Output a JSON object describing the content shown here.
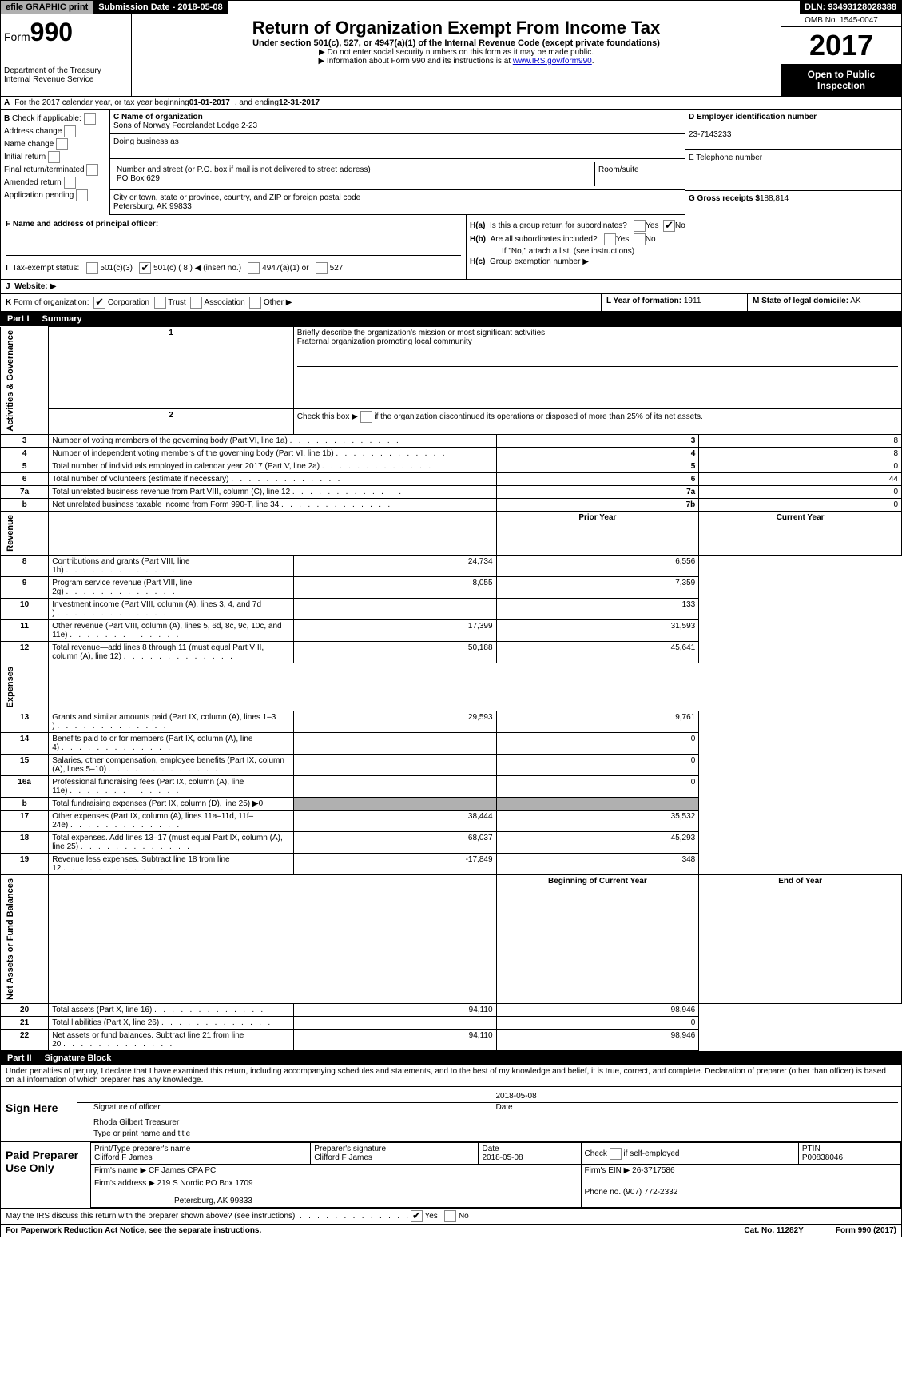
{
  "header": {
    "efile": "efile GRAPHIC print",
    "submission_label": "Submission Date - 2018-05-08",
    "dln_label": "DLN: 93493128028388",
    "form_no": "990",
    "form_prefix": "Form",
    "dept1": "Department of the Treasury",
    "dept2": "Internal Revenue Service",
    "title": "Return of Organization Exempt From Income Tax",
    "subtitle": "Under section 501(c), 527, or 4947(a)(1) of the Internal Revenue Code (except private foundations)",
    "instr1": "▶ Do not enter social security numbers on this form as it may be made public.",
    "instr2_pre": "▶ Information about Form 990 and its instructions is at ",
    "instr2_link": "www.IRS.gov/form990",
    "omb": "OMB No. 1545-0047",
    "year": "2017",
    "public": "Open to Public Inspection"
  },
  "secA": {
    "label": "A",
    "text_pre": "For the 2017 calendar year, or tax year beginning ",
    "begin": "01-01-2017",
    "mid": ", and ending ",
    "end": "12-31-2017"
  },
  "secB": {
    "label": "B",
    "check_if": "Check if applicable:",
    "items": [
      "Address change",
      "Name change",
      "Initial return",
      "Final return/terminated",
      "Amended return",
      "Application pending"
    ]
  },
  "secC": {
    "name_label": "C Name of organization",
    "name": "Sons of Norway Fedrelandet Lodge 2-23",
    "dba_label": "Doing business as",
    "addr_label": "Number and street (or P.O. box if mail is not delivered to street address)",
    "room_label": "Room/suite",
    "addr": "PO Box 629",
    "city_label": "City or town, state or province, country, and ZIP or foreign postal code",
    "city": "Petersburg, AK  99833"
  },
  "secD": {
    "label": "D Employer identification number",
    "ein": "23-7143233"
  },
  "secE": {
    "label": "E Telephone number"
  },
  "secG": {
    "label": "G Gross receipts $",
    "val": "188,814"
  },
  "secF": {
    "label": "F Name and address of principal officer:"
  },
  "secH": {
    "a_label": "H(a)",
    "a_text": "Is this a group return for subordinates?",
    "yes": "Yes",
    "no": "No",
    "b_label": "H(b)",
    "b_text": "Are all subordinates included?",
    "b_note": "If \"No,\" attach a list. (see instructions)",
    "c_label": "H(c)",
    "c_text": "Group exemption number ▶"
  },
  "secI": {
    "label": "I",
    "text": "Tax-exempt status:",
    "opt1": "501(c)(3)",
    "opt2": "501(c) ( 8 ) ◀ (insert no.)",
    "opt3": "4947(a)(1) or",
    "opt4": "527"
  },
  "secJ": {
    "label": "J",
    "text": "Website: ▶"
  },
  "secK": {
    "label": "K",
    "text": "Form of organization:",
    "o1": "Corporation",
    "o2": "Trust",
    "o3": "Association",
    "o4": "Other ▶"
  },
  "secL": {
    "label": "L Year of formation:",
    "val": "1911"
  },
  "secM": {
    "label": "M State of legal domicile:",
    "val": "AK"
  },
  "part1": {
    "label": "Part I",
    "title": "Summary"
  },
  "summary": {
    "q1": "Briefly describe the organization's mission or most significant activities:",
    "q1_ans": "Fraternal organization promoting local community",
    "q2": "Check this box ▶          if the organization discontinued its operations or disposed of more than 25% of its net assets.",
    "rows_single": [
      {
        "n": "3",
        "t": "Number of voting members of the governing body (Part VI, line 1a)",
        "c": "3",
        "v": "8"
      },
      {
        "n": "4",
        "t": "Number of independent voting members of the governing body (Part VI, line 1b)",
        "c": "4",
        "v": "8"
      },
      {
        "n": "5",
        "t": "Total number of individuals employed in calendar year 2017 (Part V, line 2a)",
        "c": "5",
        "v": "0"
      },
      {
        "n": "6",
        "t": "Total number of volunteers (estimate if necessary)",
        "c": "6",
        "v": "44"
      },
      {
        "n": "7a",
        "t": "Total unrelated business revenue from Part VIII, column (C), line 12",
        "c": "7a",
        "v": "0"
      },
      {
        "n": "b",
        "t": "Net unrelated business taxable income from Form 990-T, line 34",
        "c": "7b",
        "v": "0"
      }
    ],
    "col_prior": "Prior Year",
    "col_current": "Current Year",
    "revenue": [
      {
        "n": "8",
        "t": "Contributions and grants (Part VIII, line 1h)",
        "p": "24,734",
        "c": "6,556"
      },
      {
        "n": "9",
        "t": "Program service revenue (Part VIII, line 2g)",
        "p": "8,055",
        "c": "7,359"
      },
      {
        "n": "10",
        "t": "Investment income (Part VIII, column (A), lines 3, 4, and 7d )",
        "p": "",
        "c": "133"
      },
      {
        "n": "11",
        "t": "Other revenue (Part VIII, column (A), lines 5, 6d, 8c, 9c, 10c, and 11e)",
        "p": "17,399",
        "c": "31,593"
      },
      {
        "n": "12",
        "t": "Total revenue—add lines 8 through 11 (must equal Part VIII, column (A), line 12)",
        "p": "50,188",
        "c": "45,641"
      }
    ],
    "expenses": [
      {
        "n": "13",
        "t": "Grants and similar amounts paid (Part IX, column (A), lines 1–3 )",
        "p": "29,593",
        "c": "9,761"
      },
      {
        "n": "14",
        "t": "Benefits paid to or for members (Part IX, column (A), line 4)",
        "p": "",
        "c": "0"
      },
      {
        "n": "15",
        "t": "Salaries, other compensation, employee benefits (Part IX, column (A), lines 5–10)",
        "p": "",
        "c": "0"
      },
      {
        "n": "16a",
        "t": "Professional fundraising fees (Part IX, column (A), line 11e)",
        "p": "",
        "c": "0"
      },
      {
        "n": "b",
        "t": "Total fundraising expenses (Part IX, column (D), line 25) ▶0",
        "p": "shade",
        "c": "shade"
      },
      {
        "n": "17",
        "t": "Other expenses (Part IX, column (A), lines 11a–11d, 11f–24e)",
        "p": "38,444",
        "c": "35,532"
      },
      {
        "n": "18",
        "t": "Total expenses. Add lines 13–17 (must equal Part IX, column (A), line 25)",
        "p": "68,037",
        "c": "45,293"
      },
      {
        "n": "19",
        "t": "Revenue less expenses. Subtract line 18 from line 12",
        "p": "-17,849",
        "c": "348"
      }
    ],
    "col_begin": "Beginning of Current Year",
    "col_end": "End of Year",
    "netassets": [
      {
        "n": "20",
        "t": "Total assets (Part X, line 16)",
        "p": "94,110",
        "c": "98,946"
      },
      {
        "n": "21",
        "t": "Total liabilities (Part X, line 26)",
        "p": "",
        "c": "0"
      },
      {
        "n": "22",
        "t": "Net assets or fund balances. Subtract line 21 from line 20",
        "p": "94,110",
        "c": "98,946"
      }
    ],
    "vlabels": [
      "Activities & Governance",
      "Revenue",
      "Expenses",
      "Net Assets or Fund Balances"
    ]
  },
  "part2": {
    "label": "Part II",
    "title": "Signature Block"
  },
  "sig": {
    "penalty": "Under penalties of perjury, I declare that I have examined this return, including accompanying schedules and statements, and to the best of my knowledge and belief, it is true, correct, and complete. Declaration of preparer (other than officer) is based on all information of which preparer has any knowledge.",
    "sign_here": "Sign Here",
    "sig_officer": "Signature of officer",
    "date": "Date",
    "sig_date": "2018-05-08",
    "name_title": "Rhoda Gilbert Treasurer",
    "name_label": "Type or print name and title",
    "paid": "Paid Preparer Use Only",
    "prep_name_label": "Print/Type preparer's name",
    "prep_name": "Clifford F James",
    "prep_sig_label": "Preparer's signature",
    "prep_sig": "Clifford F James",
    "prep_date_label": "Date",
    "prep_date": "2018-05-08",
    "check_self": "Check          if self-employed",
    "ptin_label": "PTIN",
    "ptin": "P00838046",
    "firm_name_label": "Firm's name    ▶",
    "firm_name": "CF James CPA PC",
    "firm_ein_label": "Firm's EIN ▶",
    "firm_ein": "26-3717586",
    "firm_addr_label": "Firm's address ▶",
    "firm_addr": "219 S Nordic PO Box 1709",
    "firm_city": "Petersburg, AK  99833",
    "phone_label": "Phone no.",
    "phone": "(907) 772-2332",
    "discuss": "May the IRS discuss this return with the preparer shown above? (see instructions)"
  },
  "footer": {
    "pra": "For Paperwork Reduction Act Notice, see the separate instructions.",
    "cat": "Cat. No. 11282Y",
    "form": "Form 990 (2017)"
  }
}
